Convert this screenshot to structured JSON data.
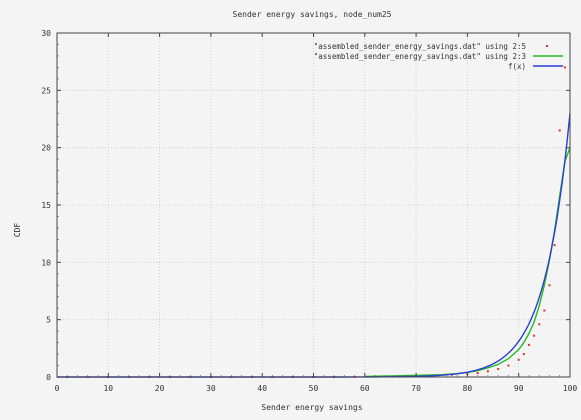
{
  "chart_data": {
    "type": "line",
    "title": "Sender energy savings, node_num25",
    "xlabel": "Sender energy savings",
    "ylabel": "CDF",
    "xlim": [
      0,
      100
    ],
    "ylim": [
      0,
      30
    ],
    "xticks": [
      0,
      10,
      20,
      30,
      40,
      50,
      60,
      70,
      80,
      90,
      100
    ],
    "yticks": [
      0,
      5,
      10,
      15,
      20,
      25,
      30
    ],
    "grid": true,
    "legend_position": "top-right",
    "series": [
      {
        "name": "\"assembled_sender_energy_savings.dat\" using 2:5",
        "style": "points",
        "color": "#e03030",
        "x": [
          2,
          6,
          10,
          14,
          18,
          22,
          26,
          30,
          34,
          38,
          42,
          46,
          50,
          54,
          58,
          62,
          65,
          68,
          71,
          74,
          77,
          80,
          82,
          84,
          86,
          88,
          90,
          91,
          92,
          93,
          94,
          95,
          96,
          97,
          98,
          99
        ],
        "y": [
          0,
          0,
          0,
          0,
          0,
          0,
          0,
          0,
          0,
          0,
          0,
          0,
          0,
          0,
          0,
          0.05,
          0.05,
          0.1,
          0.1,
          0.15,
          0.2,
          0.25,
          0.35,
          0.5,
          0.7,
          1.0,
          1.5,
          2.0,
          2.8,
          3.6,
          4.6,
          5.8,
          8.0,
          11.5,
          21.5,
          27.0
        ]
      },
      {
        "name": "\"assembled_sender_energy_savings.dat\" using 2:3",
        "style": "lines",
        "color": "#22bb22",
        "x": [
          60,
          65,
          70,
          75,
          78,
          80,
          82,
          84,
          86,
          88,
          90,
          91,
          92,
          93,
          94,
          95,
          96,
          97,
          98,
          99,
          100
        ],
        "y": [
          0.05,
          0.1,
          0.15,
          0.2,
          0.3,
          0.4,
          0.55,
          0.8,
          1.1,
          1.6,
          2.4,
          3.0,
          3.8,
          4.8,
          6.2,
          8.0,
          10.2,
          12.8,
          15.8,
          18.8,
          20.0
        ]
      },
      {
        "name": "f(x)",
        "style": "lines",
        "color": "#2a3fd6",
        "x": [],
        "y": []
      }
    ]
  }
}
